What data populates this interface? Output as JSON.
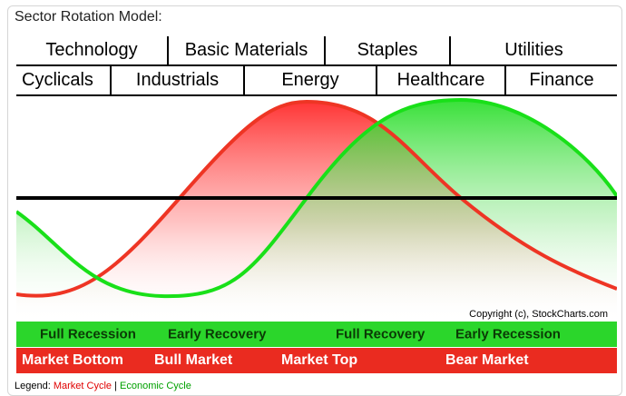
{
  "heading": "Sector Rotation Model:",
  "sectors_top": [
    "Technology",
    "Basic Materials",
    "Staples",
    "Utilities"
  ],
  "sectors_bottom": [
    "Cyclicals",
    "Industrials",
    "Energy",
    "Healthcare",
    "Finance"
  ],
  "copyright": "Copyright (c), StockCharts.com",
  "economic_phases": [
    "Full Recession",
    "Early Recovery",
    "Full Recovery",
    "Early Recession"
  ],
  "market_phases": [
    "Market Bottom",
    "Bull Market",
    "Market Top",
    "Bear Market"
  ],
  "legend": {
    "prefix": "Legend:",
    "market": "Market Cycle",
    "separator": "|",
    "economic": "Economic Cycle"
  },
  "colors": {
    "market_cycle": "#ea2b20",
    "economic_cycle": "#2bd62b",
    "midline": "#000000"
  }
}
